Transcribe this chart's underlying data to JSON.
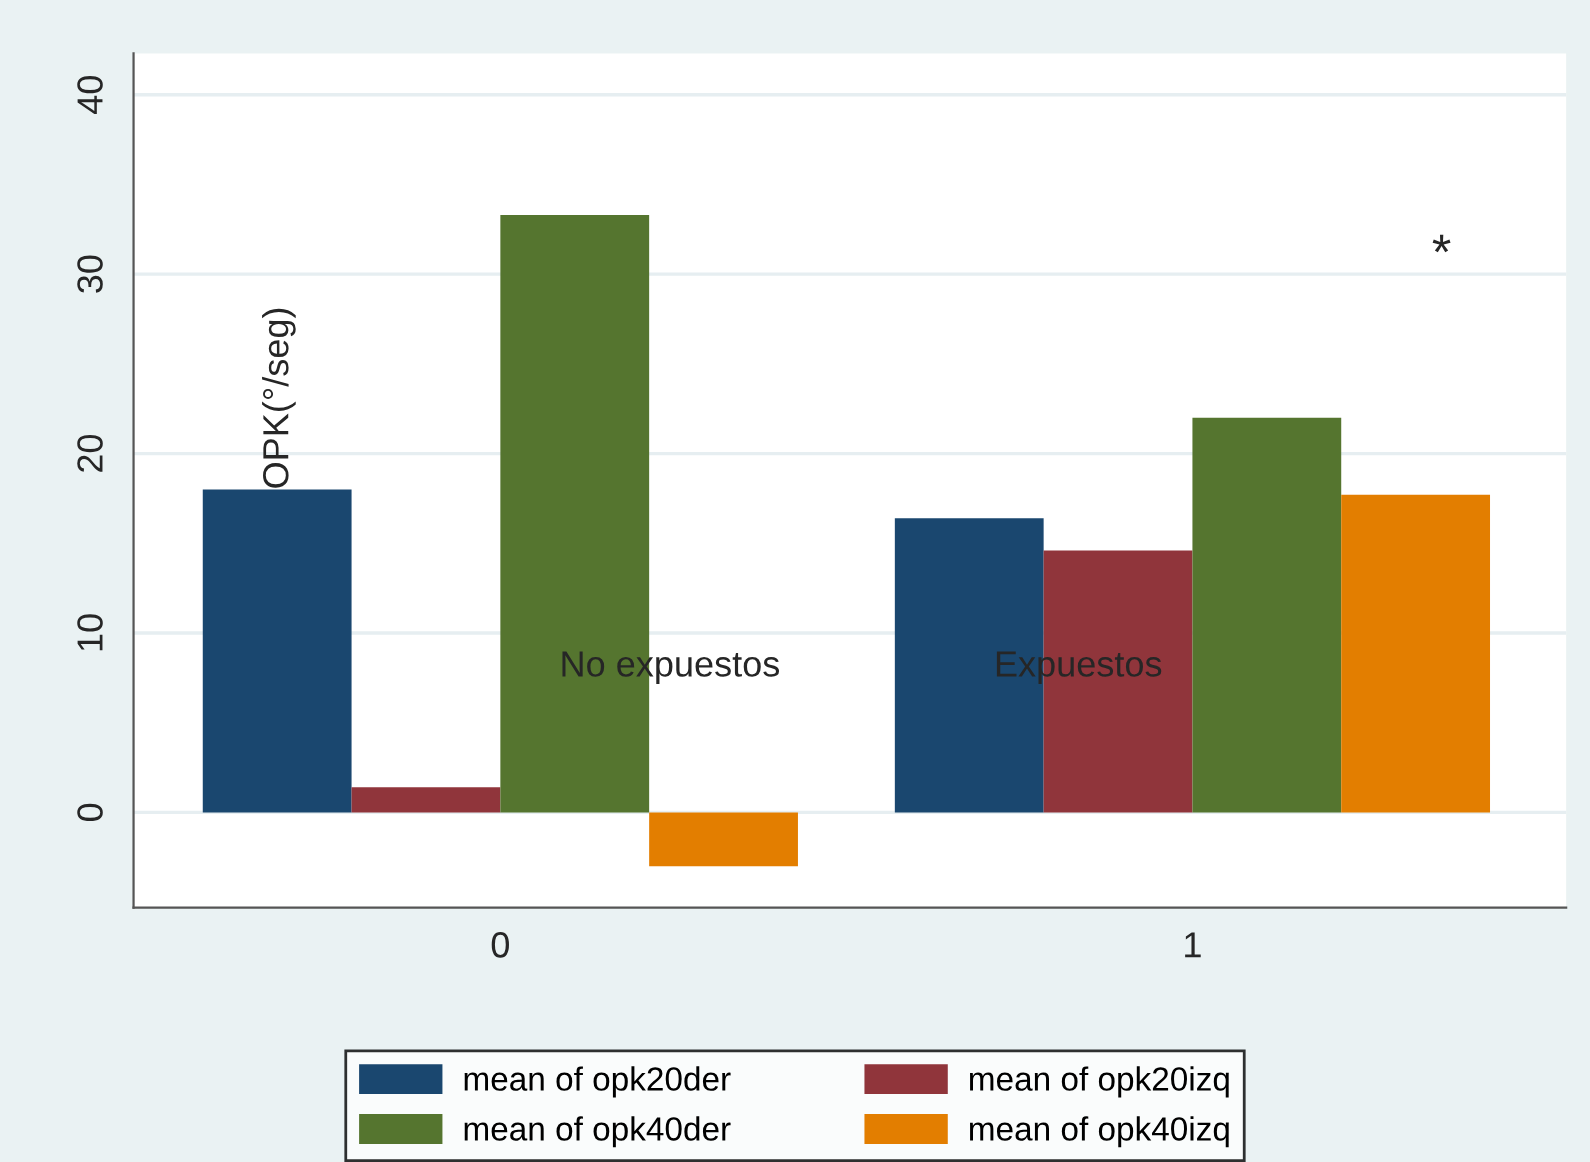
{
  "chart_data": {
    "type": "bar",
    "categories": [
      "0",
      "1"
    ],
    "series": [
      {
        "name": "mean of opk20der",
        "color": "#1a476f",
        "values": [
          18.0,
          16.4
        ]
      },
      {
        "name": "mean of opk20izq",
        "color": "#90353b",
        "values": [
          1.4,
          14.6
        ]
      },
      {
        "name": "mean of opk40der",
        "color": "#55752f",
        "values": [
          33.3,
          22.0
        ]
      },
      {
        "name": "mean of opk40izq",
        "color": "#e37e00",
        "values": [
          -3.0,
          17.7
        ]
      }
    ],
    "ylim": [
      -5.3,
      42.3
    ],
    "yticks": [
      0,
      10,
      20,
      30,
      40
    ],
    "annotations": [
      "OPK(°/seg)",
      "No expuestos",
      "Expuestos",
      "*"
    ],
    "grid": "y",
    "legend": "bottom"
  }
}
